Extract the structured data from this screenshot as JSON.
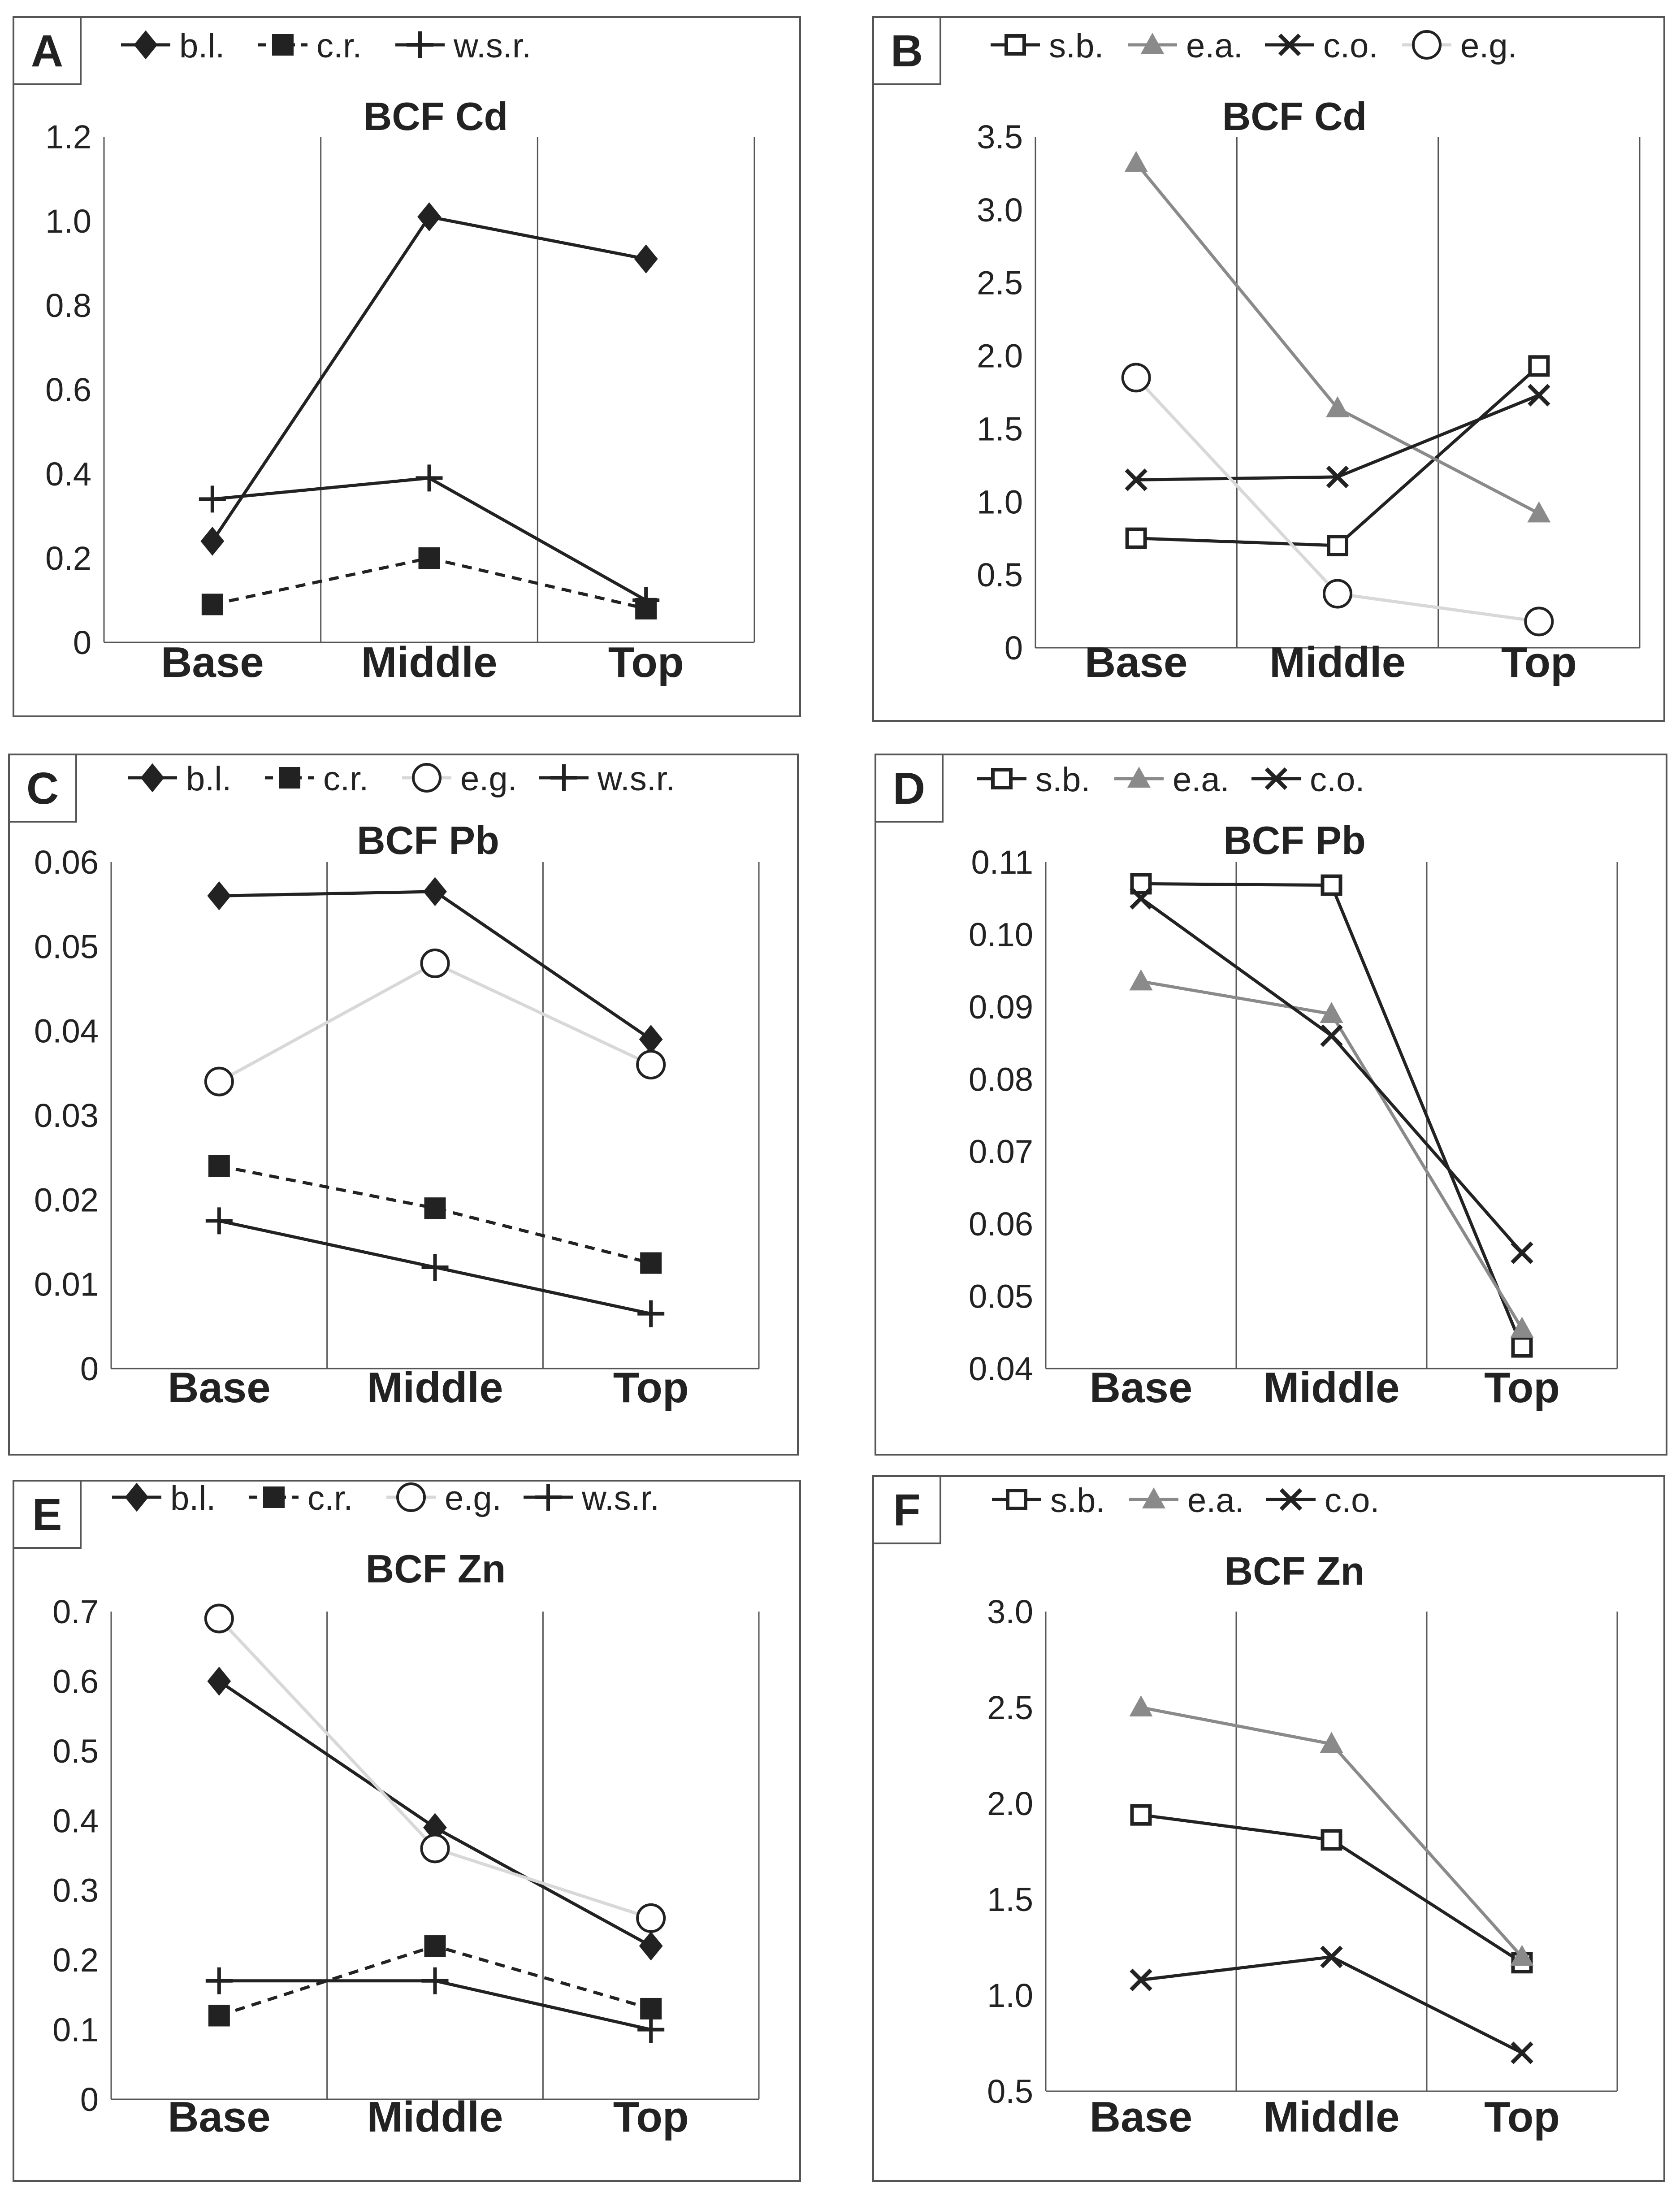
{
  "colors": {
    "black": "#222222",
    "gray": "#8a8a8a",
    "light": "#d8d8d8",
    "frame": "#555555"
  },
  "chart_data": [
    {
      "type": "line",
      "panel": "A",
      "title": "BCF Cd",
      "categories": [
        "Base",
        "Middle",
        "Top"
      ],
      "ylim": [
        0,
        1.2
      ],
      "yticks": [
        "0",
        "0.2",
        "0.4",
        "0.6",
        "0.8",
        "1.0",
        "1.2"
      ],
      "ytick_values": [
        0,
        0.2,
        0.4,
        0.6,
        0.8,
        1.0,
        1.2
      ],
      "series": [
        {
          "name": "b.l.",
          "marker": "diamond",
          "color": "black",
          "dash": false,
          "values": [
            0.24,
            1.01,
            0.91
          ]
        },
        {
          "name": "c.r.",
          "marker": "square",
          "color": "black",
          "dash": true,
          "values": [
            0.09,
            0.2,
            0.08
          ]
        },
        {
          "name": "w.s.r.",
          "marker": "plus",
          "color": "black",
          "dash": false,
          "values": [
            0.34,
            0.39,
            0.1
          ]
        }
      ]
    },
    {
      "type": "line",
      "panel": "B",
      "title": "BCF Cd",
      "categories": [
        "Base",
        "Middle",
        "Top"
      ],
      "ylim": [
        0,
        3.5
      ],
      "yticks": [
        "0",
        "0.5",
        "1.0",
        "1.5",
        "2.0",
        "2.5",
        "3.0",
        "3.5"
      ],
      "ytick_values": [
        0,
        0.5,
        1.0,
        1.5,
        2.0,
        2.5,
        3.0,
        3.5
      ],
      "series": [
        {
          "name": "s.b.",
          "marker": "open-square",
          "color": "black",
          "dash": false,
          "values": [
            0.75,
            0.7,
            1.93
          ]
        },
        {
          "name": "e.a.",
          "marker": "triangle",
          "color": "gray",
          "dash": false,
          "values": [
            3.32,
            1.64,
            0.92
          ]
        },
        {
          "name": "c.o.",
          "marker": "x",
          "color": "black",
          "dash": false,
          "values": [
            1.15,
            1.17,
            1.73
          ]
        },
        {
          "name": "e.g.",
          "marker": "circle",
          "color": "light",
          "dash": false,
          "values": [
            1.85,
            0.37,
            0.18
          ]
        }
      ]
    },
    {
      "type": "line",
      "panel": "C",
      "title": "BCF Pb",
      "categories": [
        "Base",
        "Middle",
        "Top"
      ],
      "ylim": [
        0,
        0.06
      ],
      "yticks": [
        "0",
        "0.01",
        "0.02",
        "0.03",
        "0.04",
        "0.05",
        "0.06"
      ],
      "ytick_values": [
        0,
        0.01,
        0.02,
        0.03,
        0.04,
        0.05,
        0.06
      ],
      "series": [
        {
          "name": "b.l.",
          "marker": "diamond",
          "color": "black",
          "dash": false,
          "values": [
            0.056,
            0.0565,
            0.039
          ]
        },
        {
          "name": "c.r.",
          "marker": "square",
          "color": "black",
          "dash": true,
          "values": [
            0.024,
            0.019,
            0.0125
          ]
        },
        {
          "name": "e.g.",
          "marker": "circle",
          "color": "light",
          "dash": false,
          "values": [
            0.034,
            0.048,
            0.036
          ]
        },
        {
          "name": "w.s.r.",
          "marker": "plus",
          "color": "black",
          "dash": false,
          "values": [
            0.0175,
            0.012,
            0.0065
          ]
        }
      ]
    },
    {
      "type": "line",
      "panel": "D",
      "title": "BCF Pb",
      "categories": [
        "Base",
        "Middle",
        "Top"
      ],
      "ylim": [
        0.04,
        0.11
      ],
      "yticks": [
        "0.04",
        "0.05",
        "0.06",
        "0.07",
        "0.08",
        "0.09",
        "0.10",
        "0.11"
      ],
      "ytick_values": [
        0.04,
        0.05,
        0.06,
        0.07,
        0.08,
        0.09,
        0.1,
        0.11
      ],
      "series": [
        {
          "name": "s.b.",
          "marker": "open-square",
          "color": "black",
          "dash": false,
          "values": [
            0.107,
            0.1068,
            0.043
          ]
        },
        {
          "name": "e.a.",
          "marker": "triangle",
          "color": "gray",
          "dash": false,
          "values": [
            0.0935,
            0.089,
            0.0455
          ]
        },
        {
          "name": "c.o.",
          "marker": "x",
          "color": "black",
          "dash": false,
          "values": [
            0.105,
            0.086,
            0.056
          ]
        }
      ]
    },
    {
      "type": "line",
      "panel": "E",
      "title": "BCF Zn",
      "categories": [
        "Base",
        "Middle",
        "Top"
      ],
      "ylim": [
        0,
        0.7
      ],
      "yticks": [
        "0",
        "0.1",
        "0.2",
        "0.3",
        "0.4",
        "0.5",
        "0.6",
        "0.7"
      ],
      "ytick_values": [
        0,
        0.1,
        0.2,
        0.3,
        0.4,
        0.5,
        0.6,
        0.7
      ],
      "series": [
        {
          "name": "b.l.",
          "marker": "diamond",
          "color": "black",
          "dash": false,
          "values": [
            0.6,
            0.39,
            0.22
          ]
        },
        {
          "name": "c.r.",
          "marker": "square",
          "color": "black",
          "dash": true,
          "values": [
            0.12,
            0.22,
            0.13
          ]
        },
        {
          "name": "e.g.",
          "marker": "circle",
          "color": "light",
          "dash": false,
          "values": [
            0.69,
            0.36,
            0.26
          ]
        },
        {
          "name": "w.s.r.",
          "marker": "plus",
          "color": "black",
          "dash": false,
          "values": [
            0.17,
            0.17,
            0.1
          ]
        }
      ]
    },
    {
      "type": "line",
      "panel": "F",
      "title": "BCF Zn",
      "categories": [
        "Base",
        "Middle",
        "Top"
      ],
      "ylim": [
        0.5,
        3.0
      ],
      "yticks": [
        "0.5",
        "1.0",
        "1.5",
        "2.0",
        "2.5",
        "3.0"
      ],
      "ytick_values": [
        0.5,
        1.0,
        1.5,
        2.0,
        2.5,
        3.0
      ],
      "series": [
        {
          "name": "s.b.",
          "marker": "open-square",
          "color": "black",
          "dash": false,
          "values": [
            1.94,
            1.81,
            1.17
          ]
        },
        {
          "name": "e.a.",
          "marker": "triangle",
          "color": "gray",
          "dash": false,
          "values": [
            2.5,
            2.31,
            1.2
          ]
        },
        {
          "name": "c.o.",
          "marker": "x",
          "color": "black",
          "dash": false,
          "values": [
            1.08,
            1.2,
            0.7
          ]
        }
      ]
    }
  ]
}
